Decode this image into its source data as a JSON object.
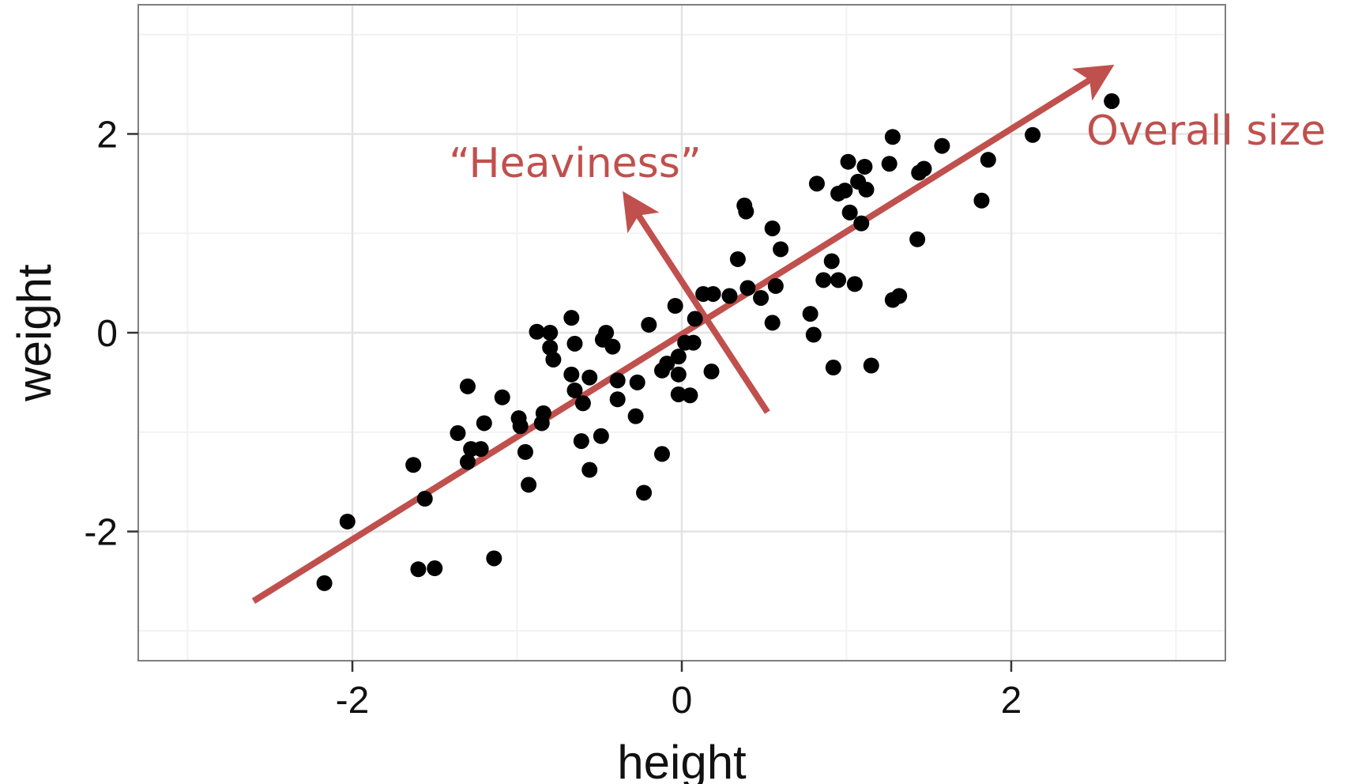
{
  "chart_data": {
    "type": "scatter",
    "title": "",
    "xlabel": "height",
    "ylabel": "weight",
    "xlim": [
      -3.3,
      3.3
    ],
    "ylim": [
      -3.3,
      3.3
    ],
    "x_ticks": [
      -2,
      0,
      2
    ],
    "y_ticks": [
      -2,
      0,
      2
    ],
    "x_tick_labels": [
      "-2",
      "0",
      "2"
    ],
    "y_tick_labels": [
      "-2",
      "0",
      "2"
    ],
    "grid": true,
    "legend": "none",
    "point_color": "#000000",
    "points": [
      [
        -2.17,
        -2.52
      ],
      [
        -2.03,
        -1.9
      ],
      [
        -1.6,
        -2.38
      ],
      [
        -1.5,
        -2.37
      ],
      [
        -1.14,
        -2.27
      ],
      [
        -1.63,
        -1.33
      ],
      [
        -1.56,
        -1.67
      ],
      [
        -1.3,
        -1.3
      ],
      [
        -1.28,
        -1.17
      ],
      [
        -1.22,
        -1.17
      ],
      [
        -1.36,
        -1.01
      ],
      [
        -1.2,
        -0.91
      ],
      [
        -1.09,
        -0.65
      ],
      [
        -1.3,
        -0.54
      ],
      [
        -0.99,
        -0.86
      ],
      [
        -0.98,
        -0.94
      ],
      [
        -0.95,
        -1.2
      ],
      [
        -0.93,
        -1.53
      ],
      [
        -0.85,
        -0.91
      ],
      [
        -0.84,
        -0.81
      ],
      [
        -0.88,
        0.01
      ],
      [
        -0.8,
        0.0
      ],
      [
        -0.8,
        -0.15
      ],
      [
        -0.78,
        -0.27
      ],
      [
        -0.67,
        0.15
      ],
      [
        -0.65,
        -0.11
      ],
      [
        -0.67,
        -0.42
      ],
      [
        -0.65,
        -0.58
      ],
      [
        -0.6,
        -0.71
      ],
      [
        -0.61,
        -1.09
      ],
      [
        -0.56,
        -1.38
      ],
      [
        -0.56,
        -0.45
      ],
      [
        -0.48,
        -0.07
      ],
      [
        -0.46,
        0.0
      ],
      [
        -0.42,
        -0.14
      ],
      [
        -0.39,
        -0.48
      ],
      [
        -0.39,
        -0.67
      ],
      [
        -0.49,
        -1.04
      ],
      [
        -0.27,
        -0.5
      ],
      [
        -0.28,
        -0.84
      ],
      [
        -0.2,
        0.08
      ],
      [
        -0.12,
        -0.38
      ],
      [
        -0.09,
        -0.31
      ],
      [
        -0.12,
        -1.22
      ],
      [
        -0.23,
        -1.61
      ],
      [
        -0.04,
        0.27
      ],
      [
        -0.02,
        -0.42
      ],
      [
        -0.02,
        -0.62
      ],
      [
        -0.02,
        -0.24
      ],
      [
        0.02,
        -0.1
      ],
      [
        0.05,
        -0.63
      ],
      [
        0.07,
        -0.1
      ],
      [
        0.08,
        0.14
      ],
      [
        0.13,
        0.39
      ],
      [
        0.19,
        0.39
      ],
      [
        0.18,
        -0.39
      ],
      [
        0.29,
        0.37
      ],
      [
        0.34,
        0.74
      ],
      [
        0.38,
        1.28
      ],
      [
        0.39,
        1.22
      ],
      [
        0.4,
        0.45
      ],
      [
        0.48,
        0.35
      ],
      [
        0.55,
        1.05
      ],
      [
        0.55,
        0.1
      ],
      [
        0.57,
        0.47
      ],
      [
        0.6,
        0.84
      ],
      [
        0.78,
        0.19
      ],
      [
        0.8,
        -0.02
      ],
      [
        0.82,
        1.5
      ],
      [
        0.86,
        0.53
      ],
      [
        0.91,
        0.72
      ],
      [
        0.92,
        -0.35
      ],
      [
        0.95,
        0.53
      ],
      [
        0.95,
        1.4
      ],
      [
        0.99,
        1.43
      ],
      [
        1.01,
        1.72
      ],
      [
        1.02,
        1.21
      ],
      [
        1.05,
        0.49
      ],
      [
        1.07,
        1.52
      ],
      [
        1.09,
        1.1
      ],
      [
        1.11,
        1.67
      ],
      [
        1.12,
        1.44
      ],
      [
        1.15,
        -0.33
      ],
      [
        1.26,
        1.7
      ],
      [
        1.28,
        1.97
      ],
      [
        1.28,
        0.33
      ],
      [
        1.32,
        0.37
      ],
      [
        1.43,
        0.94
      ],
      [
        1.44,
        1.61
      ],
      [
        1.47,
        1.65
      ],
      [
        1.58,
        1.88
      ],
      [
        1.82,
        1.33
      ],
      [
        1.86,
        1.74
      ],
      [
        2.13,
        1.99
      ],
      [
        2.61,
        2.33
      ]
    ],
    "annotations": [
      {
        "label": "“Heaviness”",
        "color": "#C0504D",
        "from": [
          0.52,
          -0.8
        ],
        "to": [
          -0.33,
          1.35
        ]
      },
      {
        "label": "Overall size",
        "color": "#C0504D",
        "from": [
          -2.6,
          -2.7
        ],
        "to": [
          2.58,
          2.65
        ]
      }
    ]
  }
}
